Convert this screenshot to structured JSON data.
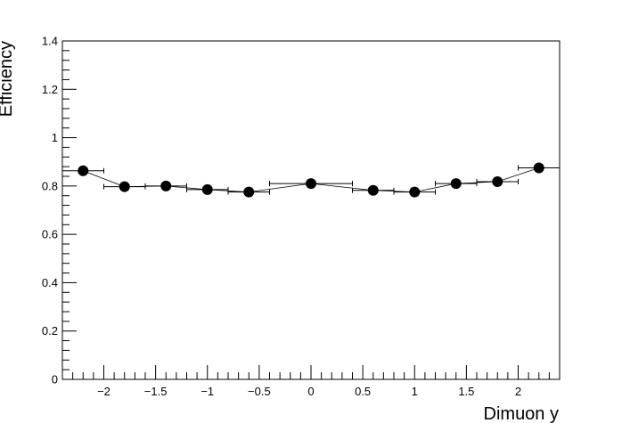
{
  "chart_data": {
    "type": "scatter",
    "xlabel": "Dimuon y",
    "ylabel": "Efficiency",
    "xlim": [
      -2.4,
      2.4
    ],
    "ylim": [
      0,
      1.4
    ],
    "x_major_ticks": [
      -2,
      -1.5,
      -1,
      -0.5,
      0,
      0.5,
      1,
      1.5,
      2
    ],
    "x_tick_labels": [
      "−2",
      "−1.5",
      "−1",
      "−0.5",
      "0",
      "0.5",
      "1",
      "1.5",
      "2"
    ],
    "y_major_ticks": [
      0,
      0.2,
      0.4,
      0.6,
      0.8,
      1,
      1.2,
      1.4
    ],
    "y_tick_labels": [
      "0",
      "0.2",
      "0.4",
      "0.6",
      "0.8",
      "1",
      "1.2",
      "1.4"
    ],
    "grid": false,
    "series": [
      {
        "marker": "filled-circle",
        "connect_line": true,
        "x": [
          -2.2,
          -1.8,
          -1.4,
          -1.0,
          -0.6,
          0.0,
          0.6,
          1.0,
          1.4,
          1.8,
          2.2
        ],
        "x_err_low": [
          0.2,
          0.2,
          0.2,
          0.2,
          0.2,
          0.4,
          0.2,
          0.2,
          0.2,
          0.2,
          0.2
        ],
        "x_err_high": [
          0.2,
          0.2,
          0.2,
          0.2,
          0.2,
          0.4,
          0.2,
          0.2,
          0.2,
          0.2,
          0.2
        ],
        "y": [
          0.863,
          0.797,
          0.8,
          0.785,
          0.775,
          0.81,
          0.782,
          0.775,
          0.81,
          0.818,
          0.875
        ]
      }
    ]
  }
}
